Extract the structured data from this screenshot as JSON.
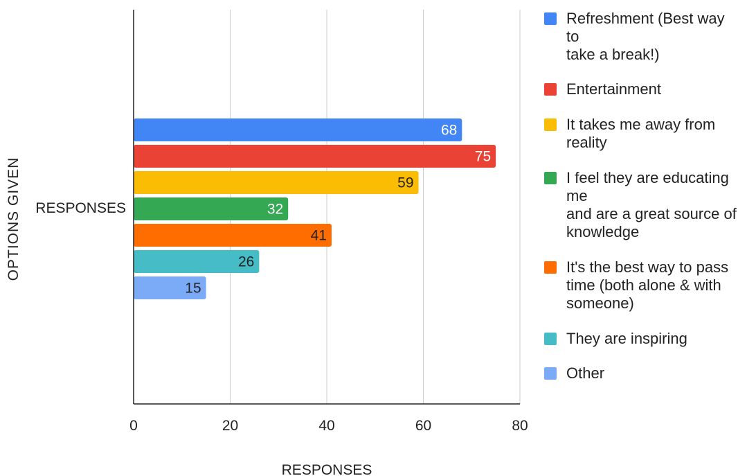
{
  "chart_data": {
    "type": "bar",
    "orientation": "horizontal",
    "categories": [
      "RESPONSES"
    ],
    "series": [
      {
        "name": "Refreshment (Best way to take a break!)",
        "values": [
          68
        ],
        "color": "#4285f4",
        "label_color": "#ffffff"
      },
      {
        "name": "Entertainment",
        "values": [
          75
        ],
        "color": "#ea4335",
        "label_color": "#ffffff"
      },
      {
        "name": "It takes me away from reality",
        "values": [
          59
        ],
        "color": "#fbbc04",
        "label_color": "#222222"
      },
      {
        "name": "I feel they are educating me and are a great source of knowledge",
        "values": [
          32
        ],
        "color": "#34a853",
        "label_color": "#ffffff"
      },
      {
        "name": "It's the best way to pass time (both alone & with someone)",
        "values": [
          41
        ],
        "color": "#ff6d01",
        "label_color": "#222222"
      },
      {
        "name": "They are inspiring",
        "values": [
          26
        ],
        "color": "#46bdc6",
        "label_color": "#222222"
      },
      {
        "name": "Other",
        "values": [
          15
        ],
        "color": "#7baaf7",
        "label_color": "#222222"
      }
    ],
    "xlabel": "RESPONSES",
    "ylabel": "OPTIONS GIVEN",
    "xlim": [
      0,
      80
    ],
    "xticks": [
      0,
      20,
      40,
      60,
      80
    ],
    "grid": true,
    "legend_position": "right"
  },
  "legend": {
    "items": [
      {
        "label": "Refreshment (Best way to\ntake a break!)"
      },
      {
        "label": "Entertainment"
      },
      {
        "label": "It takes me away from\nreality"
      },
      {
        "label": "I feel they are educating me\nand are a great source of\nknowledge"
      },
      {
        "label": "It's the best way to pass\ntime (both alone & with\nsomeone)"
      },
      {
        "label": "They are inspiring"
      },
      {
        "label": "Other"
      }
    ]
  }
}
